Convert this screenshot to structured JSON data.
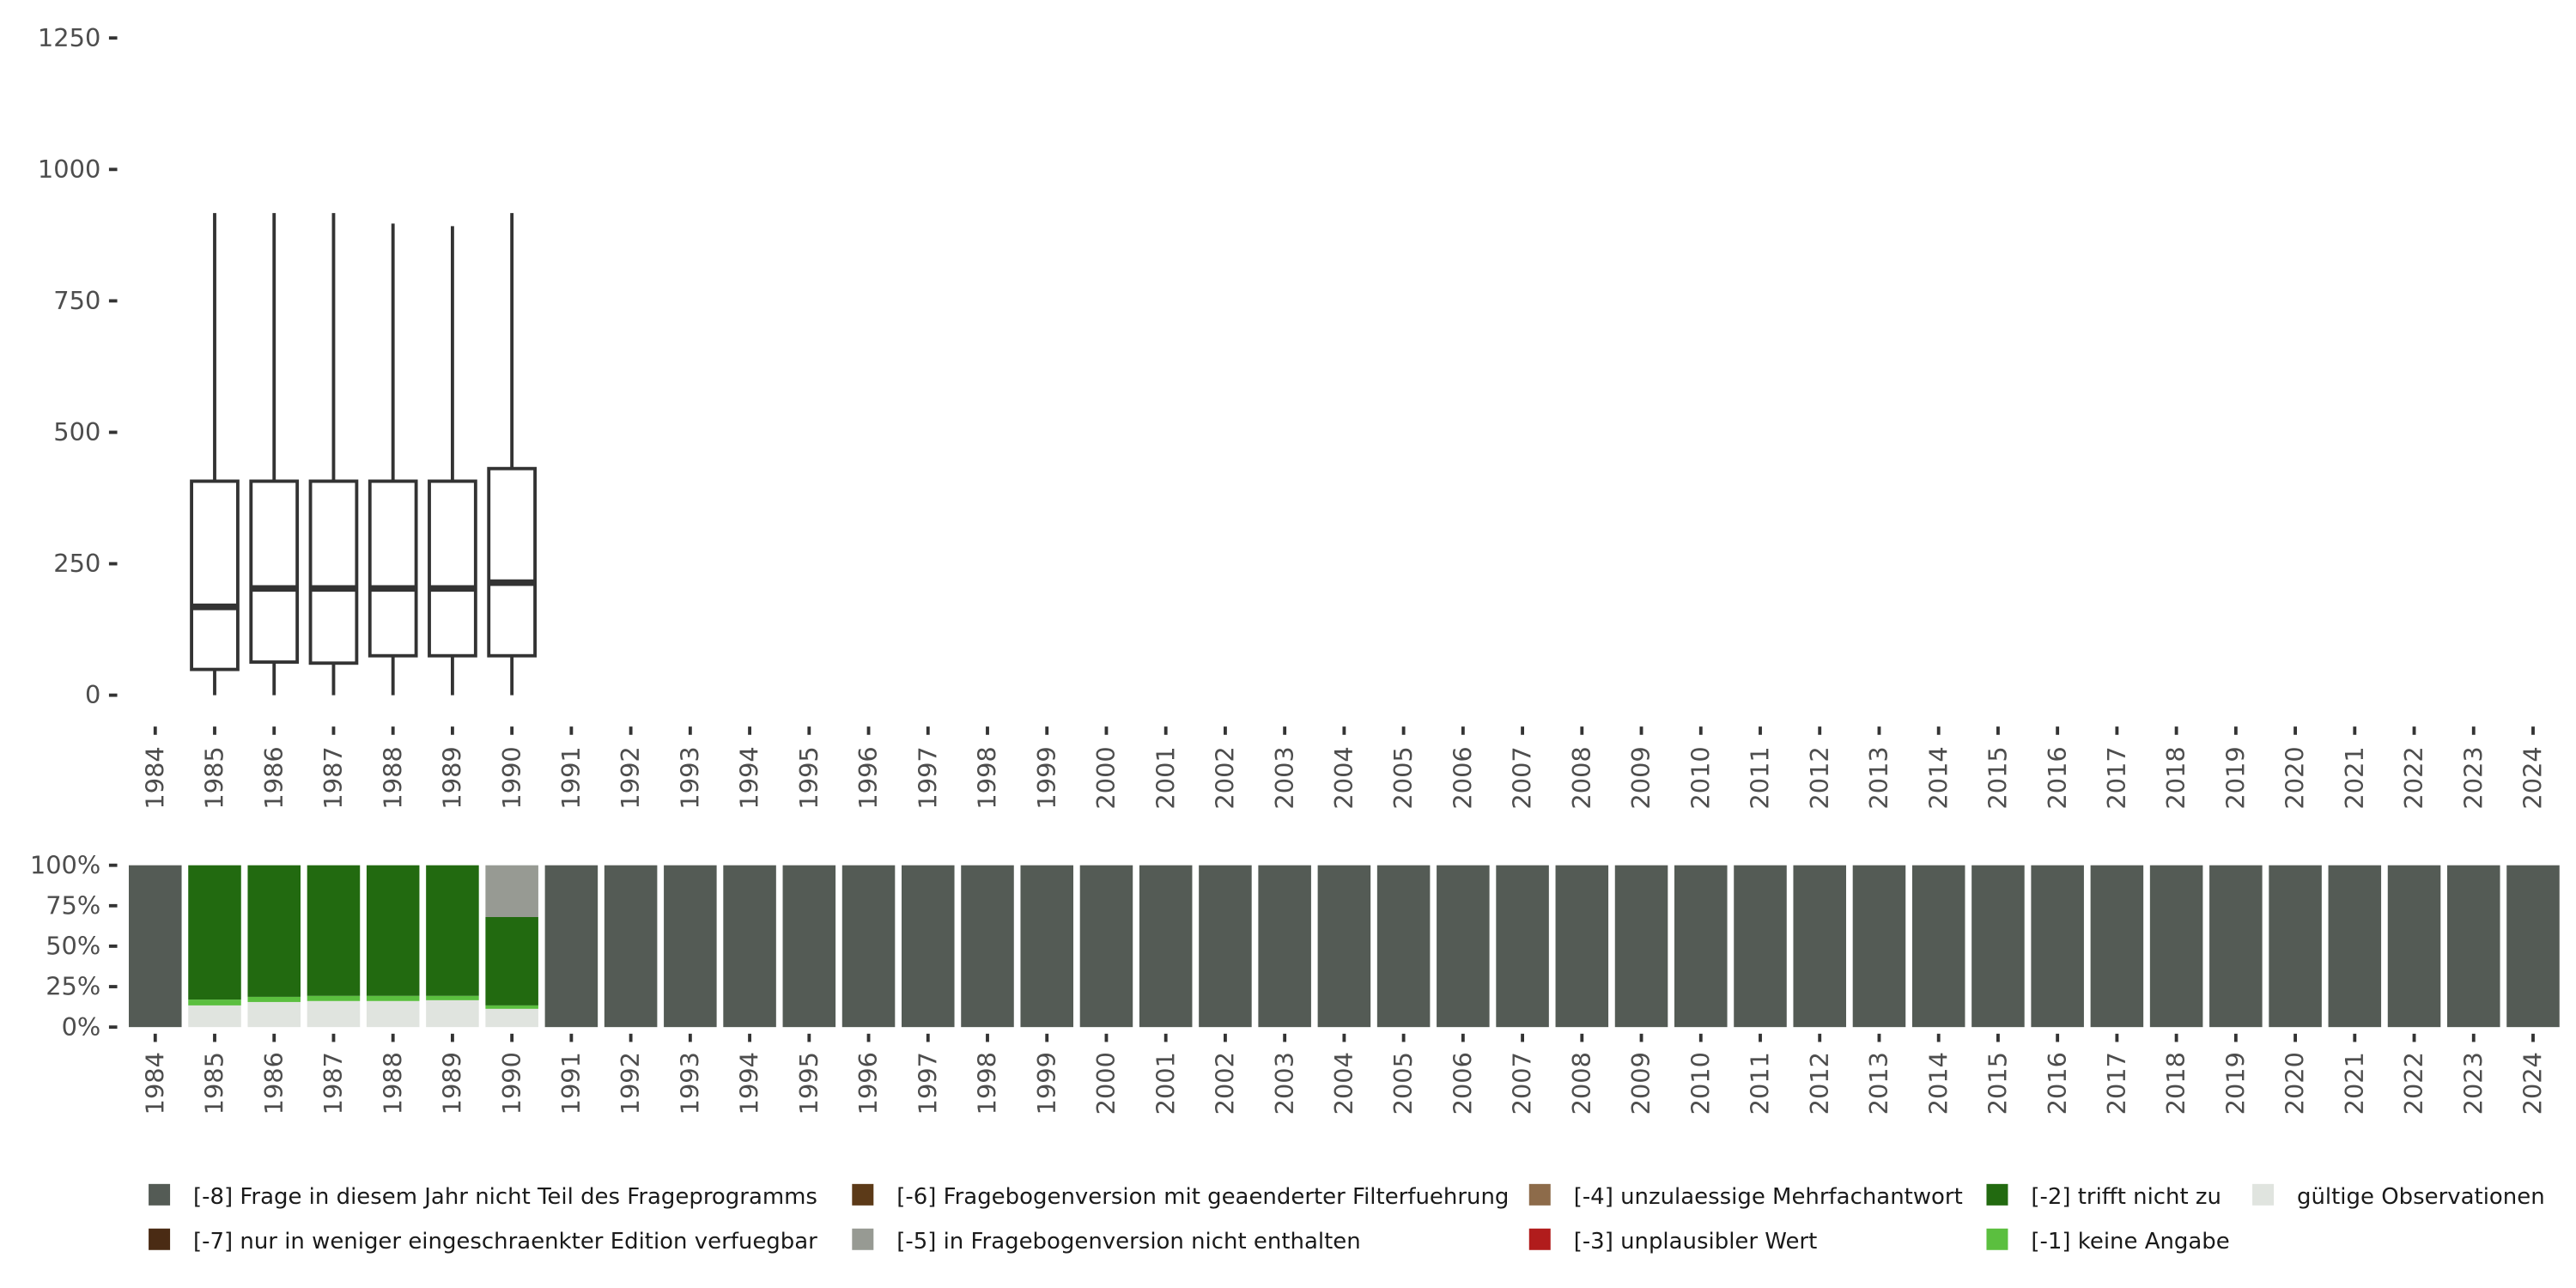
{
  "chart_data": [
    {
      "type": "boxplot",
      "title": "",
      "xlabel": "",
      "ylabel": "",
      "ylim": [
        0,
        1250
      ],
      "yticks": [
        "0",
        "250",
        "500",
        "750",
        "1000",
        "1250"
      ],
      "ytick_values": [
        0,
        250,
        500,
        750,
        1000,
        1250
      ],
      "years": [
        "1984",
        "1985",
        "1986",
        "1987",
        "1988",
        "1989",
        "1990",
        "1991",
        "1992",
        "1993",
        "1994",
        "1995",
        "1996",
        "1997",
        "1998",
        "1999",
        "2000",
        "2001",
        "2002",
        "2003",
        "2004",
        "2005",
        "2006",
        "2007",
        "2008",
        "2009",
        "2010",
        "2011",
        "2012",
        "2013",
        "2014",
        "2015",
        "2016",
        "2017",
        "2018",
        "2019",
        "2020",
        "2021",
        "2022",
        "2023",
        "2024"
      ],
      "boxes": [
        {
          "year": "1985",
          "min": 0,
          "q1": 49,
          "median": 168,
          "q3": 407,
          "max": 917
        },
        {
          "year": "1986",
          "min": 0,
          "q1": 63,
          "median": 203,
          "q3": 407,
          "max": 917
        },
        {
          "year": "1987",
          "min": 0,
          "q1": 61,
          "median": 203,
          "q3": 407,
          "max": 917
        },
        {
          "year": "1988",
          "min": 0,
          "q1": 75,
          "median": 203,
          "q3": 407,
          "max": 897
        },
        {
          "year": "1989",
          "min": 0,
          "q1": 75,
          "median": 203,
          "q3": 407,
          "max": 892
        },
        {
          "year": "1990",
          "min": 0,
          "q1": 75,
          "median": 214,
          "q3": 431,
          "max": 917
        }
      ]
    },
    {
      "type": "bar",
      "stacked": true,
      "ylim": [
        0,
        100
      ],
      "yticks": [
        "0%",
        "25%",
        "50%",
        "75%",
        "100%"
      ],
      "ytick_values": [
        0,
        25,
        50,
        75,
        100
      ],
      "categories": [
        "1984",
        "1985",
        "1986",
        "1987",
        "1988",
        "1989",
        "1990",
        "1991",
        "1992",
        "1993",
        "1994",
        "1995",
        "1996",
        "1997",
        "1998",
        "1999",
        "2000",
        "2001",
        "2002",
        "2003",
        "2004",
        "2005",
        "2006",
        "2007",
        "2008",
        "2009",
        "2010",
        "2011",
        "2012",
        "2013",
        "2014",
        "2015",
        "2016",
        "2017",
        "2018",
        "2019",
        "2020",
        "2021",
        "2022",
        "2023",
        "2024"
      ],
      "series_order_bottom_up": [
        "valid",
        "m1",
        "m2",
        "m5",
        "m8"
      ],
      "stacks": {
        "1985": {
          "valid": 13.4,
          "m1": 3.6,
          "m2": 83.0
        },
        "1986": {
          "valid": 15.5,
          "m1": 3.2,
          "m2": 81.3
        },
        "1987": {
          "valid": 16.1,
          "m1": 3.2,
          "m2": 80.7
        },
        "1988": {
          "valid": 16.1,
          "m1": 3.2,
          "m2": 80.7
        },
        "1989": {
          "valid": 16.6,
          "m1": 2.7,
          "m2": 80.7
        },
        "1990": {
          "valid": 11.3,
          "m1": 2.1,
          "m2": 54.6,
          "m5": 32.0
        }
      },
      "default_stack": {
        "m8": 100
      },
      "legend": {
        "placement": "bottom",
        "items": [
          {
            "key": "m8",
            "label": "[-8] Frage in diesem Jahr nicht Teil des Frageprogramms",
            "color": "#545b55"
          },
          {
            "key": "m7",
            "label": "[-7] nur in weniger eingeschraenkter Edition verfuegbar",
            "color": "#4a2b14"
          },
          {
            "key": "m6",
            "label": "[-6] Fragebogenversion mit geaenderter Filterfuehrung",
            "color": "#5c3a18"
          },
          {
            "key": "m5",
            "label": "[-5] in Fragebogenversion nicht enthalten",
            "color": "#979a93"
          },
          {
            "key": "m4",
            "label": "[-4] unzulaessige Mehrfachantwort",
            "color": "#8d6b4a"
          },
          {
            "key": "m3",
            "label": "[-3] unplausibler Wert",
            "color": "#b11c1c"
          },
          {
            "key": "m2",
            "label": "[-2] trifft nicht zu",
            "color": "#226a10"
          },
          {
            "key": "m1",
            "label": "[-1] keine Angabe",
            "color": "#5bbf3f"
          },
          {
            "key": "valid",
            "label": "gültige Observationen",
            "color": "#e0e4df"
          }
        ]
      }
    }
  ]
}
